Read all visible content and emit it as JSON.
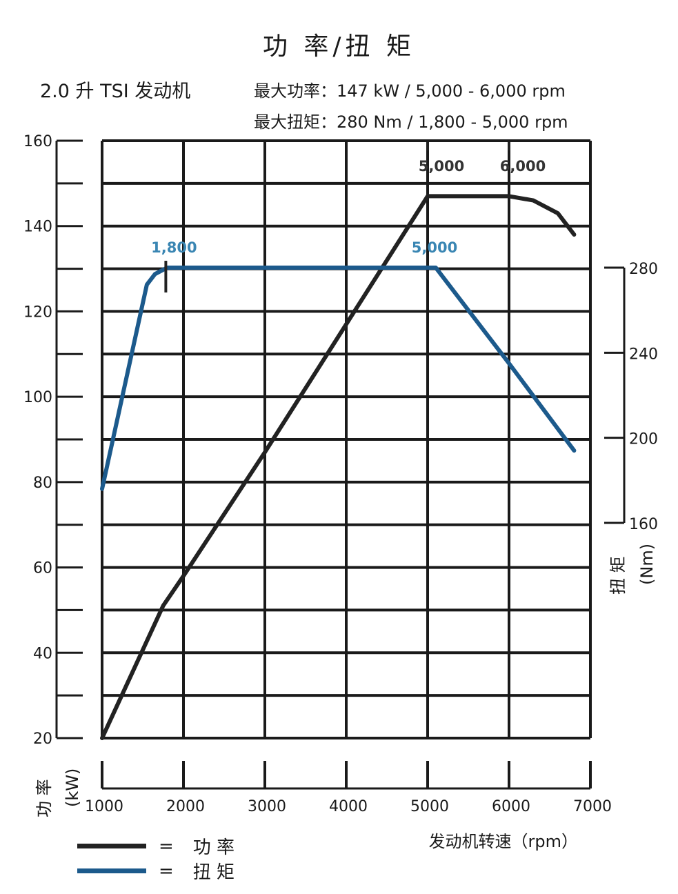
{
  "title": "功 率/扭 矩",
  "engine_label": "2.0 升 TSI 发动机",
  "spec_power": "最大功率：147 kW / 5,000 - 6,000 rpm",
  "spec_torque": "最大扭矩：280 Nm / 1,800 - 5,000 rpm",
  "legend": {
    "power_eq": "=",
    "power_label": "功 率",
    "torque_eq": "=",
    "torque_label": "扭 矩"
  },
  "colors": {
    "power": "#222222",
    "torque": "#1c5a8c",
    "grid": "#1a1a1a"
  },
  "chart_data": {
    "type": "line",
    "title": "功 率/扭 矩",
    "xlabel": "发动机转速（rpm）",
    "ylabel_left_main": "功 率",
    "ylabel_left_unit": "(kW)",
    "ylabel_right_main": "扭 矩",
    "ylabel_right_unit": "(Nm)",
    "xlim": [
      1000,
      7000
    ],
    "ylim_left": [
      20,
      160
    ],
    "ylim_right": [
      160,
      280
    ],
    "x_ticks": [
      1000,
      2000,
      3000,
      4000,
      5000,
      6000,
      7000
    ],
    "x_tick_labels": [
      "1000",
      "2000",
      "3000",
      "4000",
      "5000",
      "6000",
      "7000"
    ],
    "y_left_ticks": [
      20,
      40,
      60,
      80,
      100,
      120,
      140,
      160
    ],
    "y_left_tick_labels": [
      "20",
      "40",
      "60",
      "80",
      "100",
      "120",
      "140",
      "160"
    ],
    "y_right_ticks": [
      160,
      200,
      240,
      280
    ],
    "y_right_tick_labels": [
      "160",
      "200",
      "240",
      "280"
    ],
    "grid": true,
    "legend_position": "bottom-left",
    "series": [
      {
        "name": "功 率",
        "axis": "left",
        "color": "#222222",
        "x": [
          1000,
          1750,
          2000,
          3000,
          4000,
          5000,
          5500,
          6000,
          6300,
          6600,
          6800
        ],
        "y": [
          20,
          51,
          58,
          87,
          117,
          147,
          147,
          147,
          146,
          143,
          138
        ]
      },
      {
        "name": "扭 矩",
        "axis": "right",
        "color": "#1c5a8c",
        "x": [
          1000,
          1550,
          1650,
          1800,
          3000,
          4000,
          5000,
          5100,
          6000,
          6800
        ],
        "y": [
          176,
          272,
          277,
          280,
          280,
          280,
          280,
          280,
          235,
          194
        ]
      }
    ],
    "annotations": [
      {
        "text": "5,000",
        "x": 5000,
        "axis": "left",
        "color": "#333333"
      },
      {
        "text": "6,000",
        "x": 6000,
        "axis": "left",
        "color": "#333333"
      },
      {
        "text": "1,800",
        "x": 1800,
        "axis": "right",
        "color": "#3a86b3"
      },
      {
        "text": "5,000",
        "x": 5000,
        "axis": "right",
        "color": "#3a86b3"
      }
    ]
  }
}
